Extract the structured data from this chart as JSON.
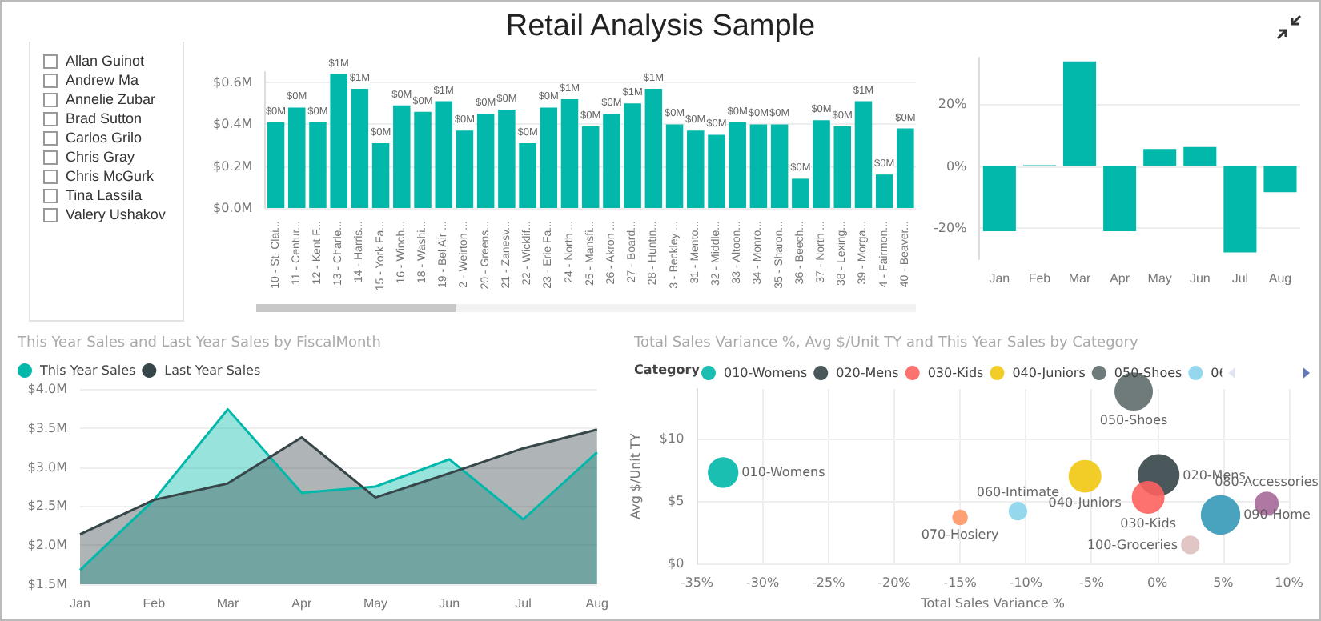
{
  "chart_data": [
    {
      "type": "other",
      "title": "Retail Analysis Sample",
      "annotations": [
        "Allan Guinot",
        "Andrew Ma",
        "Annelie Zubar",
        "Brad Sutton",
        "Carlos Grilo",
        "Chris Gray",
        "Chris McGurk",
        "Tina Lassila",
        "Valery Ushakov"
      ]
    },
    {
      "type": "bar",
      "color": "#01b8aa",
      "grid": "y",
      "categories": [
        "10 - St. Clai...",
        "11 - Centur...",
        "12 - Kent F...",
        "13 - Charle...",
        "14 - Harris...",
        "15 - York Fa...",
        "16 - Winch...",
        "18 - Washi...",
        "19 - Bel Air ...",
        "2 - Weirton ...",
        "20 - Greens...",
        "21 - Zanesv...",
        "22 - Wicklif...",
        "23 - Erie Fa...",
        "24 - North ...",
        "25 - Mansfi...",
        "26 - Akron ...",
        "27 - Board...",
        "28 - Huntin...",
        "3 - Beckley ...",
        "31 - Mento...",
        "32 - Middle...",
        "33 - Altoon...",
        "34 - Monro...",
        "35 - Sharon...",
        "36 - Beech...",
        "37 - North ...",
        "38 - Lexing...",
        "39 - Morga...",
        "4 - Fairmon...",
        "40 - Beaver..."
      ],
      "values": [
        0.41,
        0.48,
        0.41,
        0.64,
        0.57,
        0.31,
        0.49,
        0.46,
        0.51,
        0.37,
        0.45,
        0.47,
        0.31,
        0.48,
        0.52,
        0.39,
        0.45,
        0.5,
        0.57,
        0.4,
        0.37,
        0.35,
        0.41,
        0.4,
        0.4,
        0.14,
        0.42,
        0.39,
        0.51,
        0.16,
        0.38
      ],
      "value_labels": [
        "$0M",
        "$0M",
        "$0M",
        "$1M",
        "$1M",
        "$0M",
        "$0M",
        "$0M",
        "$1M",
        "$0M",
        "$0M",
        "$0M",
        "$0M",
        "$0M",
        "$1M",
        "$0M",
        "$0M",
        "$1M",
        "$1M",
        "$0M",
        "$0M",
        "$0M",
        "$0M",
        "$0M",
        "$0M",
        "$0M",
        "$0M",
        "$0M",
        "$1M",
        "$0M",
        "$0M"
      ],
      "ylim": [
        0,
        0.65
      ],
      "yticks": [
        {
          "value": 0,
          "label": "$0.0M"
        },
        {
          "value": 0.2,
          "label": "$0.2M"
        },
        {
          "value": 0.4,
          "label": "$0.4M"
        },
        {
          "value": 0.6,
          "label": "$0.6M"
        }
      ]
    },
    {
      "type": "bar",
      "color": "#01b8aa",
      "grid": "y",
      "categories": [
        "Jan",
        "Feb",
        "Mar",
        "Apr",
        "May",
        "Jun",
        "Jul",
        "Aug"
      ],
      "values": [
        -21,
        0.3,
        33.8,
        -21,
        5.5,
        6.2,
        -27.8,
        -8.4
      ],
      "ylim": [
        -30,
        35
      ],
      "yticks": [
        {
          "value": -20,
          "label": "-20%"
        },
        {
          "value": 0,
          "label": "0%"
        },
        {
          "value": 20,
          "label": "20%"
        }
      ]
    },
    {
      "type": "area",
      "title": "This Year Sales and Last Year Sales by FiscalMonth",
      "legend": "top left",
      "grid": "y",
      "marker": "none",
      "categories": [
        "Jan",
        "Feb",
        "Mar",
        "Apr",
        "May",
        "Jun",
        "Jul",
        "Aug"
      ],
      "series": [
        {
          "name": "This Year Sales",
          "color": "#01b8aa",
          "values": [
            1.68,
            2.58,
            3.74,
            2.67,
            2.75,
            3.1,
            2.33,
            3.19
          ]
        },
        {
          "name": "Last Year Sales",
          "color": "#374649",
          "values": [
            2.14,
            2.58,
            2.79,
            3.38,
            2.61,
            2.92,
            3.24,
            3.48
          ]
        }
      ],
      "ylim": [
        1.5,
        4.0
      ],
      "yticks": [
        {
          "value": 1.5,
          "label": "$1.5M"
        },
        {
          "value": 2.0,
          "label": "$2.0M"
        },
        {
          "value": 2.5,
          "label": "$2.5M"
        },
        {
          "value": 3.0,
          "label": "$3.0M"
        },
        {
          "value": 3.5,
          "label": "$3.5M"
        },
        {
          "value": 4.0,
          "label": "$4.0M"
        }
      ]
    },
    {
      "type": "bubble",
      "title": "Total Sales Variance %, Avg $/Unit TY and This Year Sales by Category",
      "xlabel": "Total Sales Variance %",
      "ylabel": "Avg $/Unit TY",
      "legend_title": "Category",
      "legend": "top left",
      "grid": true,
      "marker": "circle",
      "series": [
        {
          "name": "010-Womens",
          "color": "#01b8aa",
          "x": [
            -33.0
          ],
          "values": [
            7.3
          ],
          "sizes": [
            0.54
          ]
        },
        {
          "name": "020-Mens",
          "color": "#374649",
          "x": [
            0.1
          ],
          "values": [
            7.1
          ],
          "sizes": [
            1
          ]
        },
        {
          "name": "030-Kids",
          "color": "#fd625e",
          "x": [
            -0.7
          ],
          "values": [
            5.3
          ],
          "sizes": [
            0.62
          ]
        },
        {
          "name": "040-Juniors",
          "color": "#f2c80f",
          "x": [
            -5.5
          ],
          "values": [
            7.0
          ],
          "sizes": [
            0.62
          ]
        },
        {
          "name": "050-Shoes",
          "color": "#5f6b6d",
          "x": [
            -1.8
          ],
          "values": [
            13.8
          ],
          "sizes": [
            0.85
          ]
        },
        {
          "name": "060-Intimate",
          "color": "#8ad4eb",
          "x": [
            -10.6
          ],
          "values": [
            4.2
          ],
          "sizes": [
            0.2
          ]
        },
        {
          "name": "070-Hosiery",
          "color": "#fe9666",
          "x": [
            -15.0
          ],
          "values": [
            3.7
          ],
          "sizes": [
            0.14
          ]
        },
        {
          "name": "080-Accessories",
          "color": "#a66999",
          "x": [
            8.3
          ],
          "values": [
            4.8
          ],
          "sizes": [
            0.34
          ]
        },
        {
          "name": "090-Home",
          "color": "#3599b8",
          "x": [
            4.8
          ],
          "values": [
            3.9
          ],
          "sizes": [
            0.9
          ]
        },
        {
          "name": "100-Groceries",
          "color": "#dfbfbf",
          "x": [
            2.5
          ],
          "values": [
            1.5
          ],
          "sizes": [
            0.2
          ]
        }
      ],
      "xlim": [
        -35,
        10
      ],
      "xticks": [
        {
          "value": -35,
          "label": "-35%"
        },
        {
          "value": -30,
          "label": "-30%"
        },
        {
          "value": -25,
          "label": "-25%"
        },
        {
          "value": -20,
          "label": "-20%"
        },
        {
          "value": -15,
          "label": "-15%"
        },
        {
          "value": -10,
          "label": "-10%"
        },
        {
          "value": -5,
          "label": "-5%"
        },
        {
          "value": 0,
          "label": "0%"
        },
        {
          "value": 5,
          "label": "5%"
        },
        {
          "value": 10,
          "label": "10%"
        }
      ],
      "ylim": [
        0,
        14
      ],
      "yticks": [
        {
          "value": 0,
          "label": "$0"
        },
        {
          "value": 5,
          "label": "$5"
        },
        {
          "value": 10,
          "label": "$10"
        }
      ]
    }
  ]
}
